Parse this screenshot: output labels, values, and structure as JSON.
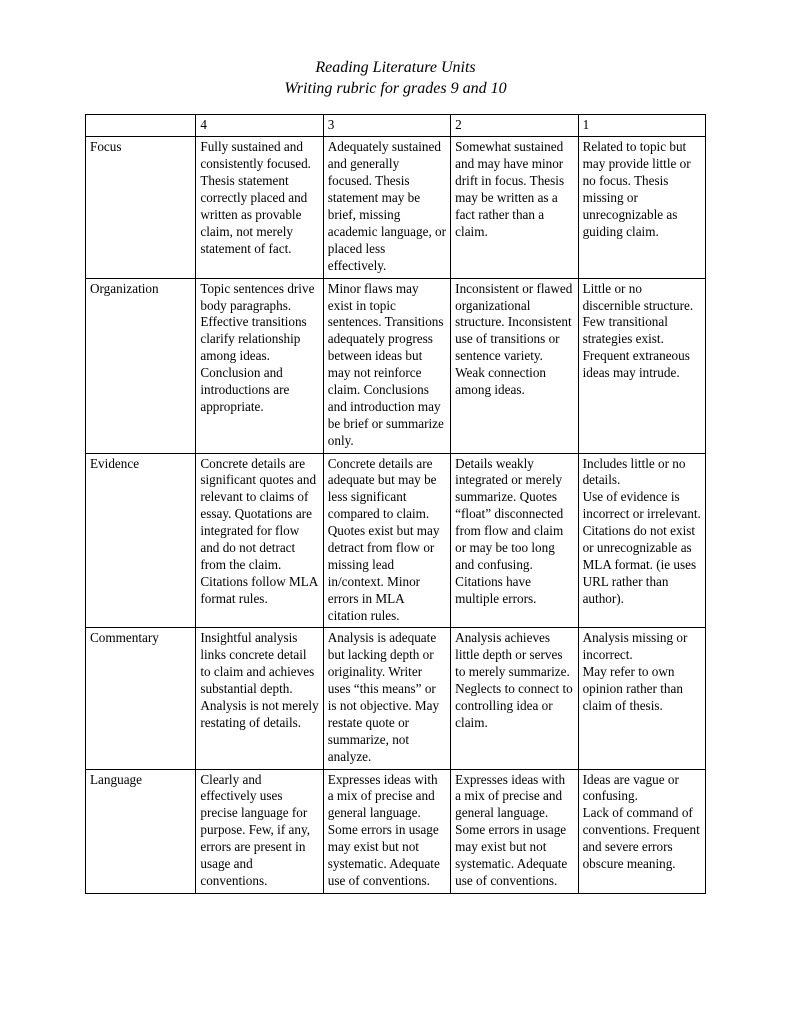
{
  "title_line1": "Reading Literature Units",
  "title_line2": "Writing rubric for grades 9 and 10",
  "header": {
    "c0": "",
    "c1": "4",
    "c2": "3",
    "c3": "2",
    "c4": "1"
  },
  "rows": [
    {
      "label": "Focus",
      "c4": "Fully sustained and consistently focused.\nThesis statement correctly placed and written as provable claim, not merely statement of fact.",
      "c3": "Adequately sustained and generally focused. Thesis statement may be brief, missing academic language, or placed less effectively.",
      "c2": "Somewhat sustained and may have minor drift in focus. Thesis may be written as a fact rather than a claim.",
      "c1": "Related to topic but may provide little or no focus. Thesis missing or unrecognizable as guiding claim."
    },
    {
      "label": "Organization",
      "c4": "Topic sentences drive body paragraphs. Effective transitions clarify relationship among ideas.\nConclusion and introductions are appropriate.",
      "c3": "Minor flaws may exist in topic sentences. Transitions adequately progress between ideas but may not reinforce claim. Conclusions and introduction may be brief or summarize only.",
      "c2": "Inconsistent or flawed organizational structure. Inconsistent use of transitions or sentence variety. Weak connection among ideas.",
      "c1": "Little or no discernible structure.\nFew transitional strategies exist. Frequent extraneous ideas may intrude."
    },
    {
      "label": "Evidence",
      "c4": "Concrete details are significant quotes and relevant to claims of essay. Quotations are integrated for flow and do not detract from the claim. Citations follow MLA format rules.",
      "c3": "Concrete details are adequate but may be less significant compared to claim. Quotes exist but may detract from flow or missing lead in/context. Minor errors in MLA citation rules.",
      "c2": "Details weakly integrated or merely summarize. Quotes “float” disconnected from flow and claim or may be too long and confusing. Citations have multiple errors.",
      "c1": "Includes little or no details.\nUse of evidence is incorrect or irrelevant.\nCitations do not exist or unrecognizable as MLA format. (ie uses URL rather than author)."
    },
    {
      "label": "Commentary",
      "c4": "Insightful analysis links concrete detail to claim and achieves substantial depth. Analysis is not merely restating of details.",
      "c3": "Analysis is adequate but lacking depth or originality. Writer uses “this means” or is not objective. May restate quote or summarize, not analyze.",
      "c2": "Analysis achieves little depth or serves to merely summarize. Neglects to connect to controlling idea or claim.",
      "c1": "Analysis missing or incorrect.\nMay refer to own opinion rather than claim of thesis."
    },
    {
      "label": "Language",
      "c4": "Clearly and effectively uses precise language for purpose.  Few, if any, errors are present in usage and conventions.",
      "c3": "Expresses ideas with a mix of precise and general language. Some errors in usage may exist but not systematic. Adequate use of conventions.",
      "c2": "Expresses ideas with a mix of precise and general language. Some errors in usage may exist but not systematic. Adequate use of conventions.",
      "c1": "Ideas are vague or confusing.\nLack of command of conventions. Frequent and severe errors obscure meaning."
    }
  ]
}
